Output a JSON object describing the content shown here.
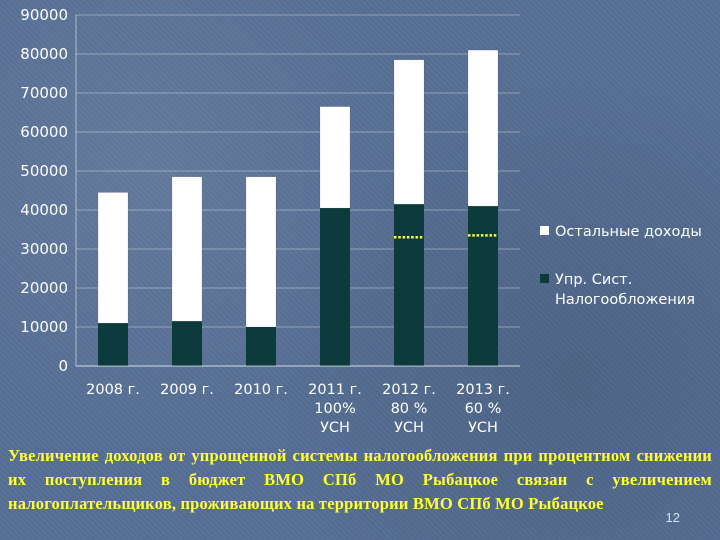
{
  "chart_data": {
    "type": "bar",
    "stacked": true,
    "categories": [
      [
        "2008 г."
      ],
      [
        "2009 г."
      ],
      [
        "2010 г."
      ],
      [
        "2011 г.",
        "100%",
        "УСН"
      ],
      [
        "2012 г.",
        "80 %",
        "УСН"
      ],
      [
        "2013 г.",
        "60 %",
        "УСН"
      ]
    ],
    "series": [
      {
        "name": "Упр. Сист. Налогообложения",
        "values": [
          11000,
          11500,
          10000,
          40500,
          41500,
          41000
        ],
        "color": "#0d3b3b"
      },
      {
        "name": "Остальные доходы",
        "values": [
          33500,
          37000,
          38500,
          26000,
          37000,
          40000
        ],
        "color": "#ffffff"
      }
    ],
    "legend_lines": [
      [
        "Остальные доходы"
      ],
      [
        "Упр. Сист.",
        "Налогообложения"
      ]
    ],
    "markers": [
      {
        "category_index": 4,
        "value": 33000,
        "color": "#ffff33"
      },
      {
        "category_index": 5,
        "value": 33500,
        "color": "#ffff33"
      }
    ],
    "ylim": [
      0,
      90000
    ],
    "yticks": [
      0,
      10000,
      20000,
      30000,
      40000,
      50000,
      60000,
      70000,
      80000,
      90000
    ],
    "grid": true,
    "legend": "right",
    "title": "",
    "xlabel": "",
    "ylabel": ""
  },
  "caption": "Увеличение доходов от упрощенной системы налогообложения при процентном снижении их поступления в бюджет ВМО СПб МО Рыбацкое связан с увеличением налогоплательщиков, проживающих на территории ВМО СПб МО Рыбацкое",
  "page_number": "12"
}
